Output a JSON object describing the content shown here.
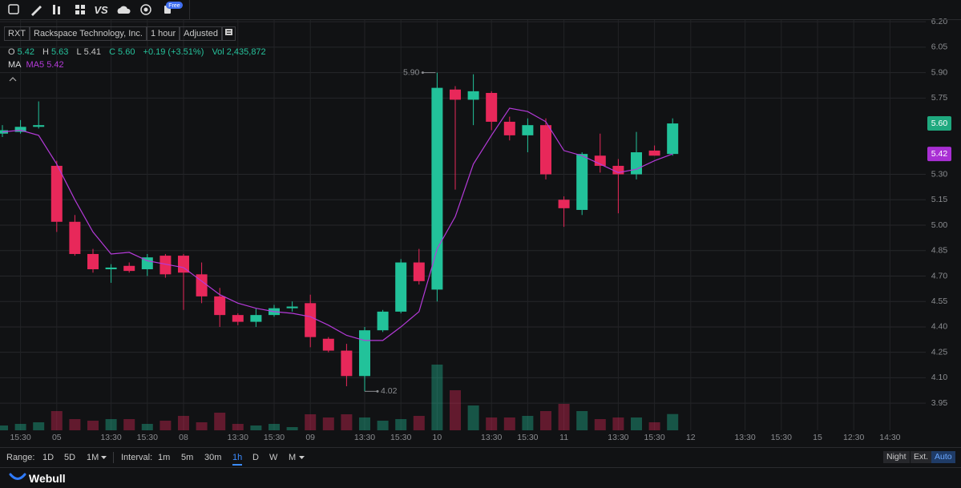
{
  "toolbar": {
    "vs": "VS",
    "badge": "Free"
  },
  "legend": {
    "symbol": "RXT",
    "name": "Rackspace Technology, Inc.",
    "interval": "1 hour",
    "adjust": "Adjusted"
  },
  "quote": {
    "o_label": "O",
    "o": "5.42",
    "h_label": "H",
    "h": "5.63",
    "l_label": "L",
    "l": "5.41",
    "c_label": "C",
    "c": "5.60",
    "change": "+0.19 (+3.51%)",
    "vol_label": "Vol",
    "vol": "2,435,872"
  },
  "chart_data": {
    "type": "candlestick",
    "categories": [
      null,
      "15:30",
      null,
      "05",
      null,
      null,
      "13:30",
      null,
      "15:30",
      null,
      "08",
      null,
      null,
      "13:30",
      null,
      "15:30",
      null,
      "09",
      null,
      null,
      "13:30",
      null,
      "15:30",
      null,
      "10",
      null,
      null,
      "13:30",
      null,
      "15:30",
      null,
      "11",
      null,
      null,
      "13:30",
      null,
      "15:30",
      null,
      "12",
      null,
      null,
      "13:30",
      null,
      "15:30",
      null,
      "15",
      null,
      "12:30",
      null,
      "14:30"
    ],
    "open": [
      5.54,
      5.55,
      5.58,
      5.35,
      5.02,
      4.83,
      4.74,
      4.76,
      4.74,
      4.82,
      4.82,
      4.71,
      4.58,
      4.47,
      4.43,
      4.47,
      4.51,
      4.54,
      4.33,
      4.26,
      4.11,
      4.38,
      4.49,
      4.78,
      4.62,
      5.8,
      5.74,
      5.78,
      5.61,
      5.53,
      5.59,
      5.15,
      5.09,
      5.41,
      5.35,
      5.3,
      5.44,
      5.42,
      null,
      null,
      null,
      null,
      null,
      null,
      null,
      null,
      null,
      null,
      null,
      null
    ],
    "high": [
      5.59,
      5.62,
      5.73,
      5.38,
      5.06,
      4.86,
      4.77,
      4.78,
      4.83,
      4.83,
      4.83,
      4.78,
      4.63,
      4.48,
      4.51,
      4.53,
      4.55,
      4.59,
      4.34,
      4.3,
      4.4,
      4.5,
      4.8,
      4.86,
      5.9,
      5.82,
      5.89,
      5.79,
      5.64,
      5.63,
      5.63,
      5.17,
      5.43,
      5.54,
      5.39,
      5.55,
      5.47,
      5.63,
      null,
      null,
      null,
      null,
      null,
      null,
      null,
      null,
      null,
      null,
      null,
      null
    ],
    "low": [
      5.52,
      5.54,
      5.57,
      4.96,
      4.82,
      4.72,
      4.66,
      4.72,
      4.7,
      4.69,
      4.5,
      4.54,
      4.4,
      4.41,
      4.4,
      4.46,
      4.49,
      4.28,
      4.25,
      4.05,
      4.02,
      4.37,
      4.48,
      4.65,
      4.55,
      5.21,
      5.59,
      5.56,
      5.5,
      5.43,
      5.27,
      4.99,
      5.06,
      5.31,
      5.07,
      5.27,
      5.41,
      5.41,
      null,
      null,
      null,
      null,
      null,
      null,
      null,
      null,
      null,
      null,
      null,
      null
    ],
    "close": [
      5.56,
      5.58,
      5.59,
      5.02,
      4.83,
      4.74,
      4.75,
      4.73,
      4.81,
      4.71,
      4.72,
      4.58,
      4.47,
      4.43,
      4.47,
      4.51,
      4.52,
      4.34,
      4.26,
      4.11,
      4.38,
      4.49,
      4.78,
      4.67,
      5.81,
      5.74,
      5.79,
      5.61,
      5.53,
      5.59,
      5.3,
      5.1,
      5.42,
      5.35,
      5.3,
      5.43,
      5.41,
      5.6,
      null,
      null,
      null,
      null,
      null,
      null,
      null,
      null,
      null,
      null,
      null,
      null
    ],
    "high_labels": [
      null,
      null,
      null,
      null,
      null,
      null,
      null,
      null,
      null,
      null,
      null,
      null,
      null,
      null,
      null,
      null,
      null,
      null,
      null,
      null,
      null,
      null,
      null,
      null,
      "5.90",
      null,
      null,
      null,
      null,
      null,
      null,
      null,
      null,
      null,
      null,
      null,
      null,
      null,
      null,
      null,
      null,
      null,
      null,
      null,
      null,
      null,
      null,
      null,
      null,
      null
    ],
    "low_labels": [
      null,
      null,
      null,
      null,
      null,
      null,
      null,
      null,
      null,
      null,
      null,
      null,
      null,
      null,
      null,
      null,
      null,
      null,
      null,
      null,
      "4.02",
      null,
      null,
      null,
      null,
      null,
      null,
      null,
      null,
      null,
      null,
      null,
      null,
      null,
      null,
      null,
      null,
      null,
      null,
      null,
      null,
      null,
      null,
      null,
      null,
      null,
      null,
      null,
      null,
      null
    ],
    "volume": [
      720000,
      960000,
      1200000,
      2880000,
      1680000,
      1440000,
      1680000,
      1680000,
      960000,
      1440000,
      2160000,
      1200000,
      2640000,
      960000,
      720000,
      960000,
      480000,
      2400000,
      1920000,
      2400000,
      1920000,
      1440000,
      1680000,
      2160000,
      9840000,
      6000000,
      3720000,
      1920000,
      1920000,
      2160000,
      2880000,
      3960000,
      2880000,
      1680000,
      1920000,
      1920000,
      1200000,
      2435872,
      null,
      null,
      null,
      null,
      null,
      null,
      null,
      null,
      null,
      null,
      null,
      null
    ],
    "ma_label": "MA",
    "ma": {
      "name": "MA5",
      "color": "#b43ad8",
      "value_label": "5.42",
      "values": [
        5.55,
        5.56,
        5.53,
        5.36,
        5.15,
        4.96,
        4.83,
        4.84,
        4.79,
        4.77,
        4.75,
        4.67,
        4.59,
        4.54,
        4.51,
        4.49,
        4.48,
        4.46,
        4.41,
        4.35,
        4.32,
        4.32,
        4.4,
        4.49,
        4.86,
        5.05,
        5.36,
        5.53,
        5.69,
        5.67,
        5.61,
        5.44,
        5.41,
        5.36,
        5.31,
        5.33,
        5.38,
        5.42,
        null,
        null,
        null,
        null,
        null,
        null,
        null,
        null,
        null,
        null,
        null,
        null
      ]
    },
    "up_color": "#22c29a",
    "down_color": "#e8285a",
    "ylim": [
      3.79,
      6.21
    ],
    "yticks": [
      {
        "value": 6.2,
        "label": "6.20"
      },
      6.05,
      {
        "value": 5.9,
        "label": "5.90"
      },
      5.75,
      {
        "value": 5.3,
        "label": "5.30"
      },
      5.15,
      {
        "value": 5.0,
        "label": "5.00"
      },
      4.85,
      {
        "value": 4.7,
        "label": "4.70"
      },
      4.55,
      {
        "value": 4.4,
        "label": "4.40"
      },
      4.25,
      {
        "value": 4.1,
        "label": "4.10"
      },
      3.95
    ],
    "grid": true,
    "price_tags": [
      {
        "value": 5.6,
        "label": "5.60",
        "color": "#1fa97f"
      },
      {
        "value": 5.42,
        "label": "5.42",
        "color": "#a92fd4"
      }
    ]
  },
  "footer": {
    "range_label": "Range:",
    "ranges": [
      "1D",
      "5D",
      "1M"
    ],
    "interval_label": "Interval:",
    "intervals": [
      "1m",
      "5m",
      "30m",
      "1h",
      "D",
      "W",
      "M"
    ],
    "modes": [
      "Night",
      "Ext.",
      "Auto"
    ],
    "brand": "Webull"
  }
}
